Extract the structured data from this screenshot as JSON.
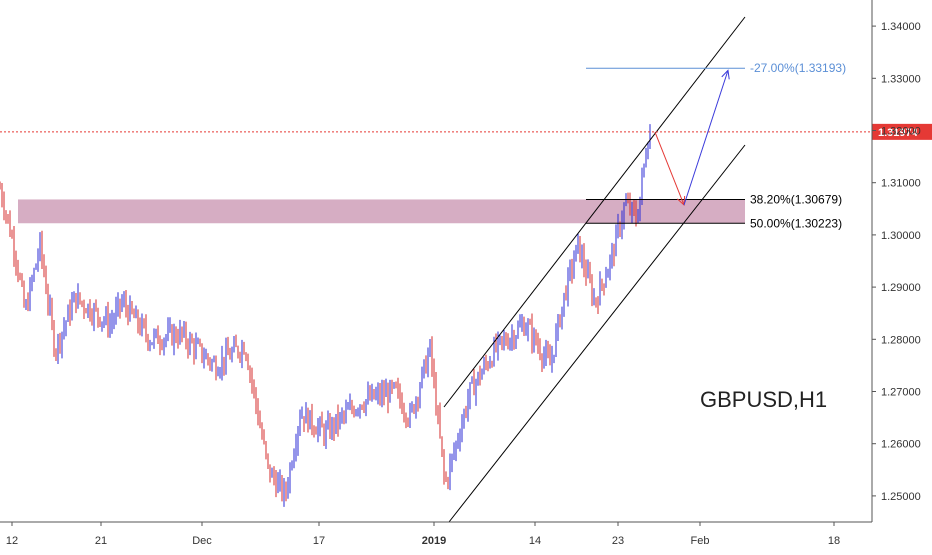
{
  "chart_data": {
    "type": "candlestick",
    "symbol_label": "GBPUSD,H1",
    "price_axis": {
      "min": 1.245,
      "max": 1.345,
      "ticks": [
        "1.34000",
        "1.33000",
        "1.32000",
        "1.31000",
        "1.30000",
        "1.29000",
        "1.28000",
        "1.27000",
        "1.26000",
        "1.25000"
      ],
      "tick_values": [
        1.34,
        1.33,
        1.32,
        1.31,
        1.3,
        1.29,
        1.28,
        1.27,
        1.26,
        1.25
      ]
    },
    "time_axis": {
      "labels": [
        "12",
        "21",
        "Dec",
        "17",
        "2019",
        "14",
        "23",
        "Feb",
        "18"
      ],
      "bold_labels": [
        "2019"
      ]
    },
    "current_price": {
      "label": "1.31974",
      "value": 1.31974,
      "color": "#e53935"
    },
    "fib_levels": [
      {
        "label": "-27.00%(1.33193)",
        "value": 1.33193,
        "color": "#5b8fd6"
      },
      {
        "label": "38.20%(1.30679)",
        "value": 1.30679,
        "color": "#000000"
      },
      {
        "label": "50.00%(1.30223)",
        "value": 1.30223,
        "color": "#000000"
      }
    ],
    "zone": {
      "high": 1.30679,
      "low": 1.30223,
      "color": "#d4a9c0"
    },
    "path_points": [
      [
        1.4011,
        1.2504
      ],
      [
        1.4021,
        1.255
      ],
      [
        1.4031,
        1.258
      ],
      [
        1.4041,
        1.262
      ],
      [
        1.4051,
        1.265
      ],
      [
        1.4061,
        1.264
      ],
      [
        1.4071,
        1.269
      ],
      [
        1.4081,
        1.272
      ],
      [
        1.4091,
        1.277
      ],
      [
        1.4101,
        1.28
      ],
      [
        1.4111,
        1.276
      ],
      [
        1.4121,
        1.279
      ],
      [
        1.4131,
        1.275
      ],
      [
        1.4141,
        1.28
      ],
      [
        1.4151,
        1.284
      ],
      [
        1.4161,
        1.288
      ],
      [
        1.4171,
        1.286
      ],
      [
        1.4181,
        1.29
      ],
      [
        1.4191,
        1.293
      ],
      [
        1.4201,
        1.296
      ],
      [
        1.4211,
        1.299
      ],
      [
        1.4221,
        1.287
      ],
      [
        1.4231,
        1.296
      ],
      [
        1.4241,
        1.3
      ],
      [
        1.4251,
        1.293
      ],
      [
        1.4261,
        1.296
      ],
      [
        1.4271,
        1.29
      ],
      [
        1.4281,
        1.294
      ],
      [
        1.4291,
        1.287
      ],
      [
        1.4301,
        1.285
      ],
      [
        1.4311,
        1.29
      ],
      [
        1.4321,
        1.294
      ],
      [
        1.4331,
        1.299
      ],
      [
        1.4341,
        1.305
      ],
      [
        1.4351,
        1.308
      ],
      [
        1.4361,
        1.302
      ],
      [
        1.4371,
        1.306
      ],
      [
        1.4381,
        1.31
      ],
      [
        1.4391,
        1.319
      ],
      [
        1.4401,
        1.3197
      ]
    ],
    "projection": [
      {
        "color": "#e53935",
        "from": 1.3197,
        "to": 1.3065
      },
      {
        "color": "#3b3bdb",
        "from": 1.3065,
        "to": 1.3319
      }
    ]
  }
}
